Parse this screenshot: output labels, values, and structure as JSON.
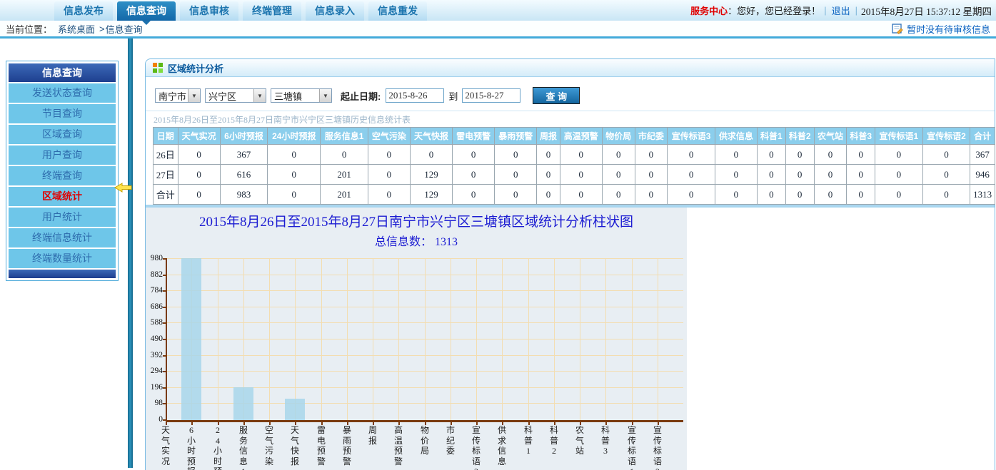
{
  "colors": {
    "accent_blue": "#1a70ad",
    "sidebar_item_blue": "#6ec6e9",
    "active_red": "#e00000",
    "bar_fill": "#a8d6ea",
    "axis_brown": "#7a3b10",
    "grid_tan": "#f3ddb0",
    "chart_title_blue": "#1c1cd2",
    "table_header_blue": "#8bceec"
  },
  "icons": {
    "panel_title_icon": "grid-icon",
    "pending_icon": "note-pencil-icon",
    "dropdown_icon": "▼",
    "collapse_icon": "left-arrow"
  },
  "topnav": {
    "tabs": [
      {
        "label": "信息发布",
        "active": false
      },
      {
        "label": "信息查询",
        "active": true
      },
      {
        "label": "信息审核",
        "active": false
      },
      {
        "label": "终端管理",
        "active": false
      },
      {
        "label": "信息录入",
        "active": false
      },
      {
        "label": "信息重发",
        "active": false
      }
    ],
    "service_center": "服务中心",
    "greeting": "：您好，您已经登录！",
    "sep": "|",
    "logout": "退出",
    "datetime": "2015年8月27日  15:37:12  星期四"
  },
  "breadcrumb": {
    "location_label": "当前位置：",
    "home": "系统桌面",
    "separator": ">",
    "current": "信息查询",
    "pending_notice": "暂时没有待审核信息"
  },
  "sidebar": {
    "title": "信息查询",
    "items": [
      {
        "label": "发送状态查询",
        "active": false
      },
      {
        "label": "节目查询",
        "active": false
      },
      {
        "label": "区域查询",
        "active": false
      },
      {
        "label": "用户查询",
        "active": false
      },
      {
        "label": "终端查询",
        "active": false
      },
      {
        "label": "区域统计",
        "active": true
      },
      {
        "label": "用户统计",
        "active": false
      },
      {
        "label": "终端信息统计",
        "active": false
      },
      {
        "label": "终端数量统计",
        "active": false
      }
    ]
  },
  "panel": {
    "title": "区域统计分析",
    "form": {
      "selects": [
        {
          "value": "南宁市"
        },
        {
          "value": "兴宁区"
        },
        {
          "value": "三塘镇"
        }
      ],
      "date_label": "起止日期:",
      "start_date": "2015-8-26",
      "to_label": "到",
      "end_date": "2015-8-27",
      "query_button": "查  询"
    }
  },
  "table": {
    "title": "2015年8月26日至2015年8月27日南宁市兴宁区三塘镇历史信息统计表",
    "columns": [
      "日期",
      "天气实况",
      "6小时预报",
      "24小时预报",
      "服务信息1",
      "空气污染",
      "天气快报",
      "雷电预警",
      "暴雨预警",
      "周报",
      "高温预警",
      "物价局",
      "市纪委",
      "宣传标语3",
      "供求信息",
      "科普1",
      "科普2",
      "农气站",
      "科普3",
      "宣传标语1",
      "宣传标语2",
      "合计"
    ],
    "rows": [
      [
        "26日",
        "0",
        "367",
        "0",
        "0",
        "0",
        "0",
        "0",
        "0",
        "0",
        "0",
        "0",
        "0",
        "0",
        "0",
        "0",
        "0",
        "0",
        "0",
        "0",
        "0",
        "367"
      ],
      [
        "27日",
        "0",
        "616",
        "0",
        "201",
        "0",
        "129",
        "0",
        "0",
        "0",
        "0",
        "0",
        "0",
        "0",
        "0",
        "0",
        "0",
        "0",
        "0",
        "0",
        "0",
        "946"
      ],
      [
        "合计",
        "0",
        "983",
        "0",
        "201",
        "0",
        "129",
        "0",
        "0",
        "0",
        "0",
        "0",
        "0",
        "0",
        "0",
        "0",
        "0",
        "0",
        "0",
        "0",
        "0",
        "1313"
      ]
    ]
  },
  "chart_data": {
    "type": "bar",
    "title": "2015年8月26日至2015年8月27日南宁市兴宁区三塘镇区域统计分析柱状图",
    "subtitle_label": "总信息数：",
    "total": "1313",
    "categories": [
      "天气实况",
      "6小时预报",
      "24小时预报",
      "服务信息1",
      "空气污染",
      "天气快报",
      "雷电预警",
      "暴雨预警",
      "周报",
      "高温预警",
      "物价局",
      "市纪委",
      "宣传标语3",
      "供求信息",
      "科普1",
      "科普2",
      "农气站",
      "科普3",
      "宣传标语1",
      "宣传标语2"
    ],
    "values": [
      0,
      983,
      0,
      201,
      0,
      129,
      0,
      0,
      0,
      0,
      0,
      0,
      0,
      0,
      0,
      0,
      0,
      0,
      0,
      0
    ],
    "yticks": [
      0,
      98,
      196,
      294,
      392,
      490,
      588,
      686,
      784,
      882,
      980
    ],
    "ylim": [
      0,
      980
    ],
    "xlabel": "",
    "ylabel": "",
    "grid": true,
    "legend": false
  }
}
